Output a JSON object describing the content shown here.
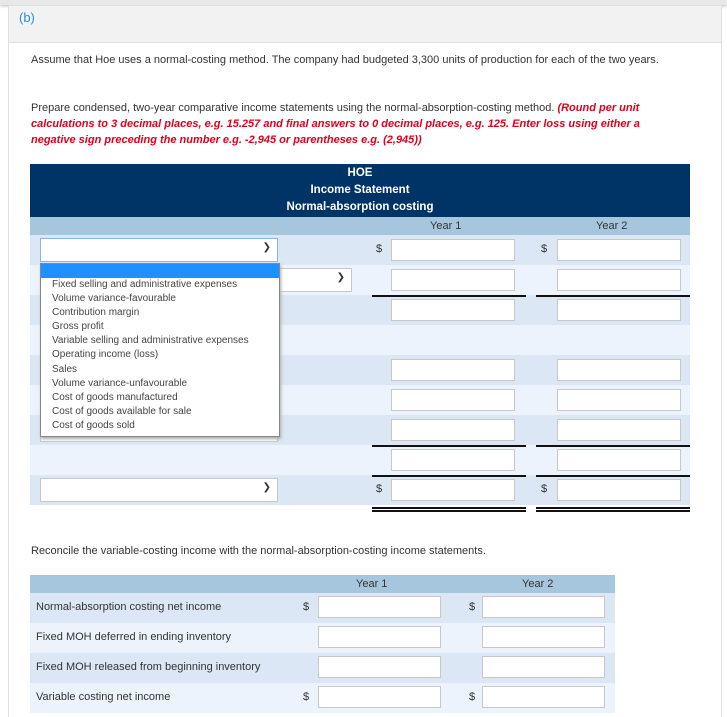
{
  "part_label": "(b)",
  "intro": "Assume that Hoe uses a normal-costing method. The company had budgeted 3,300 units of production for each of the two years.",
  "instruction": "Prepare condensed, two-year comparative income statements using the normal-absorption-costing method.",
  "instruction_note": "(Round per unit calculations to 3 decimal places, e.g. 15.257 and final answers to 0 decimal places, e.g. 125. Enter loss using either a negative sign preceding the number e.g. -2,945 or parentheses e.g. (2,945))",
  "statement": {
    "company": "HOE",
    "title": "Income Statement",
    "subtitle": "Normal-absorption costing",
    "year1": "Year 1",
    "year2": "Year 2",
    "currency": "$"
  },
  "dropdown_options": [
    "Fixed selling and administrative expenses",
    "Volume variance-favourable",
    "Contribution margin",
    "Gross profit",
    "Variable selling and administrative expenses",
    "Operating income (loss)",
    "Sales",
    "Volume variance-unfavourable",
    "Cost of goods manufactured",
    "Cost of goods available for sale",
    "Cost of goods sold"
  ],
  "reconcile": {
    "prompt": "Reconcile the variable-costing income with the normal-absorption-costing income statements.",
    "year1": "Year 1",
    "year2": "Year 2",
    "currency": "$",
    "rows": [
      "Normal-absorption costing net income",
      "Fixed MOH deferred in ending inventory",
      "Fixed MOH released from beginning inventory",
      "Variable costing net income"
    ]
  }
}
